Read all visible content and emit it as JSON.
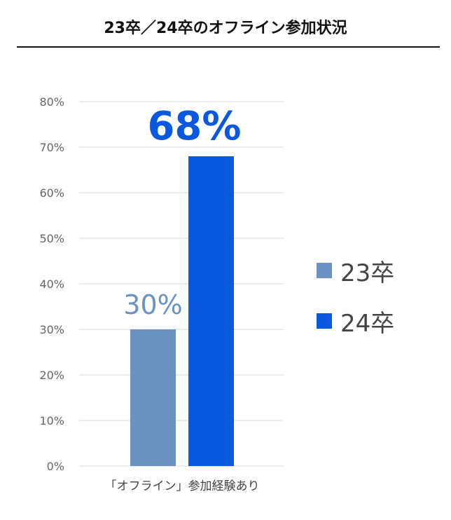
{
  "title": "23卒／24卒のオフライン参加状況",
  "chart_data": {
    "type": "bar",
    "title": "23卒／24卒のオフライン参加状況",
    "categories": [
      "「オフライン」参加経験あり"
    ],
    "series": [
      {
        "name": "23卒",
        "values": [
          30
        ],
        "color": "#6a93c2",
        "data_label": "30%"
      },
      {
        "name": "24卒",
        "values": [
          68
        ],
        "color": "#0b58e0",
        "data_label": "68%"
      }
    ],
    "xlabel": "",
    "ylabel": "",
    "ylim": [
      0,
      80
    ],
    "y_ticks": [
      "0%",
      "10%",
      "20%",
      "30%",
      "40%",
      "50%",
      "60%",
      "70%",
      "80%"
    ],
    "grid": true,
    "legend_position": "right"
  },
  "legend": [
    {
      "label": "23卒",
      "color": "#6a93c2"
    },
    {
      "label": "24卒",
      "color": "#0b58e0"
    }
  ]
}
